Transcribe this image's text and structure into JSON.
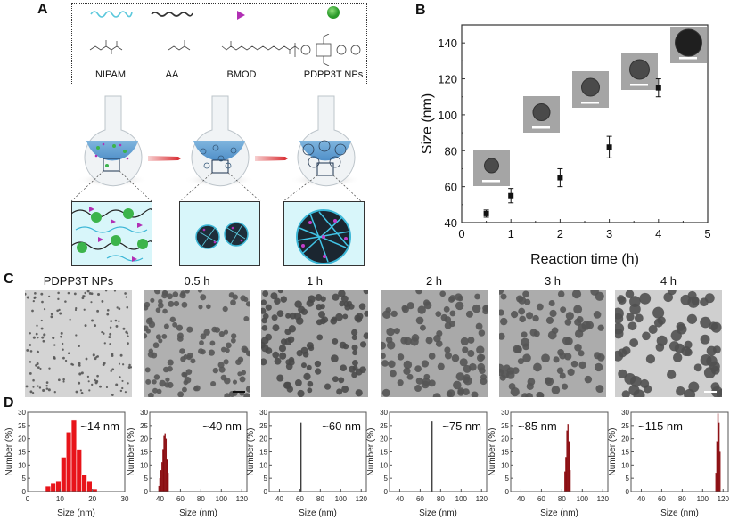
{
  "panels": {
    "A": {
      "label": "A",
      "components": [
        {
          "name": "NIPAM",
          "icon": "cyan-wavy-chain-icon",
          "formula": "H2C=CH–C(=O)–NH–CH(CH3)2"
        },
        {
          "name": "AA",
          "icon": "black-wavy-chain-icon",
          "formula": "H2C=CH–COOH"
        },
        {
          "name": "BMOD",
          "icon": "magenta-triangle-icon",
          "formula": "CH2=C(CH3)–COO–(CH2)2–S–S–(CH2)2–OOC–C(CH3)=CH2"
        },
        {
          "name": "PDPP3T NPs",
          "icon": "green-sphere-icon",
          "formula": "[DPP–thiophene trimer]n, C8H17/C10H21 side chains"
        }
      ],
      "flasks": [
        "flask-monomers",
        "flask-small-nanogels",
        "flask-large-nanogels"
      ],
      "arrows": 2
    },
    "B": {
      "label": "B"
    },
    "C": {
      "label": "C",
      "images": [
        {
          "title": "PDPP3T NPs",
          "bg": "#d4d4d4",
          "dot": "#555",
          "r": 1.3,
          "n": 160
        },
        {
          "title": "0.5 h",
          "bg": "#b0b0b0",
          "dot": "#585858",
          "r": 3.2,
          "n": 120
        },
        {
          "title": "1 h",
          "bg": "#a8a8a8",
          "dot": "#4a4a4a",
          "r": 3.6,
          "n": 110
        },
        {
          "title": "2 h",
          "bg": "#a9a9a9",
          "dot": "#555",
          "r": 4.0,
          "n": 95
        },
        {
          "title": "3 h",
          "bg": "#acacac",
          "dot": "#555",
          "r": 4.3,
          "n": 85
        },
        {
          "title": "4 h",
          "bg": "#cfcfcf",
          "dot": "#505050",
          "r": 5.5,
          "n": 70
        }
      ]
    },
    "D": {
      "label": "D"
    }
  },
  "chart_data": [
    {
      "type": "scatter",
      "panel": "B",
      "title": "",
      "xlabel": "Reaction time (h)",
      "ylabel": "Size (nm)",
      "xlim": [
        0,
        5
      ],
      "ylim": [
        40,
        150
      ],
      "xticks": [
        0,
        1,
        2,
        3,
        4,
        5
      ],
      "yticks": [
        40,
        60,
        80,
        100,
        120,
        140
      ],
      "grid": false,
      "x": [
        0.5,
        1,
        2,
        3,
        4
      ],
      "values": [
        45,
        55,
        65,
        82,
        115
      ],
      "error": [
        2,
        4,
        5,
        6,
        5
      ],
      "insets": [
        "tem-single-particle-0.5h",
        "tem-single-particle-1h",
        "tem-single-particle-2h",
        "tem-single-particle-3h",
        "tem-single-particle-4h"
      ]
    },
    {
      "type": "bar",
      "panel": "D1",
      "annotation": "~14 nm",
      "xlabel": "Size (nm)",
      "ylabel": "Number (%)",
      "xlim": [
        0,
        30
      ],
      "ylim": [
        0,
        30
      ],
      "xticks": [
        0,
        10,
        20,
        30
      ],
      "yticks": [
        0,
        5,
        10,
        15,
        20,
        25,
        30
      ],
      "color": "#e8141a",
      "bin_width": 1.6,
      "x": [
        6.3,
        7.9,
        9.5,
        11.1,
        12.7,
        14.3,
        15.9,
        17.5,
        19.1,
        20.7
      ],
      "values": [
        2,
        3,
        4,
        13,
        22.5,
        27,
        16,
        6.5,
        4,
        1
      ]
    },
    {
      "type": "bar",
      "panel": "D2",
      "annotation": "~40 nm",
      "xlabel": "Size (nm)",
      "ylabel": "Number (%)",
      "xlim": [
        30,
        125
      ],
      "ylim": [
        0,
        30
      ],
      "xticks": [
        40,
        60,
        80,
        100,
        120
      ],
      "yticks": [
        0,
        5,
        10,
        15,
        20,
        25,
        30
      ],
      "color": "#8b0c10",
      "bin_width": 1,
      "x": [
        39,
        40,
        41,
        42,
        43,
        44,
        45,
        46,
        47,
        48
      ],
      "values": [
        2,
        5,
        8,
        11,
        16,
        21,
        22,
        20,
        12,
        7
      ]
    },
    {
      "type": "bar",
      "panel": "D3",
      "annotation": "~60 nm",
      "xlabel": "Size (nm)",
      "ylabel": "Number (%)",
      "xlim": [
        30,
        125
      ],
      "ylim": [
        0,
        30
      ],
      "xticks": [
        40,
        60,
        80,
        100,
        120
      ],
      "yticks": [
        0,
        5,
        10,
        15,
        20,
        25,
        30
      ],
      "color": "#222222",
      "bin_width": 0.6,
      "x": [
        61
      ],
      "values": [
        26
      ]
    },
    {
      "type": "bar",
      "panel": "D4",
      "annotation": "~75 nm",
      "xlabel": "Size (nm)",
      "ylabel": "Number (%)",
      "xlim": [
        30,
        125
      ],
      "ylim": [
        0,
        30
      ],
      "xticks": [
        40,
        60,
        80,
        100,
        120
      ],
      "yticks": [
        0,
        5,
        10,
        15,
        20,
        25,
        30
      ],
      "color": "#222222",
      "bin_width": 0.6,
      "x": [
        71.5
      ],
      "values": [
        26.5
      ]
    },
    {
      "type": "bar",
      "panel": "D5",
      "annotation": "~85 nm",
      "xlabel": "Size (nm)",
      "ylabel": "Number (%)",
      "xlim": [
        30,
        125
      ],
      "ylim": [
        0,
        30
      ],
      "xticks": [
        40,
        60,
        80,
        100,
        120
      ],
      "yticks": [
        0,
        5,
        10,
        15,
        20,
        25,
        30
      ],
      "color": "#8b0c10",
      "bin_width": 1,
      "x": [
        83,
        84,
        85,
        86,
        87,
        88
      ],
      "values": [
        7.5,
        13,
        23,
        25.5,
        19,
        8
      ]
    },
    {
      "type": "bar",
      "panel": "D6",
      "annotation": "~115 nm",
      "xlabel": "Size (nm)",
      "ylabel": "Number (%)",
      "xlim": [
        30,
        125
      ],
      "ylim": [
        0,
        30
      ],
      "xticks": [
        40,
        60,
        80,
        100,
        120
      ],
      "yticks": [
        0,
        5,
        10,
        15,
        20,
        25,
        30
      ],
      "color": "#8b0c10",
      "bin_width": 1,
      "x": [
        113,
        114,
        115,
        116,
        117
      ],
      "values": [
        7,
        19,
        29.5,
        26,
        15
      ]
    }
  ]
}
